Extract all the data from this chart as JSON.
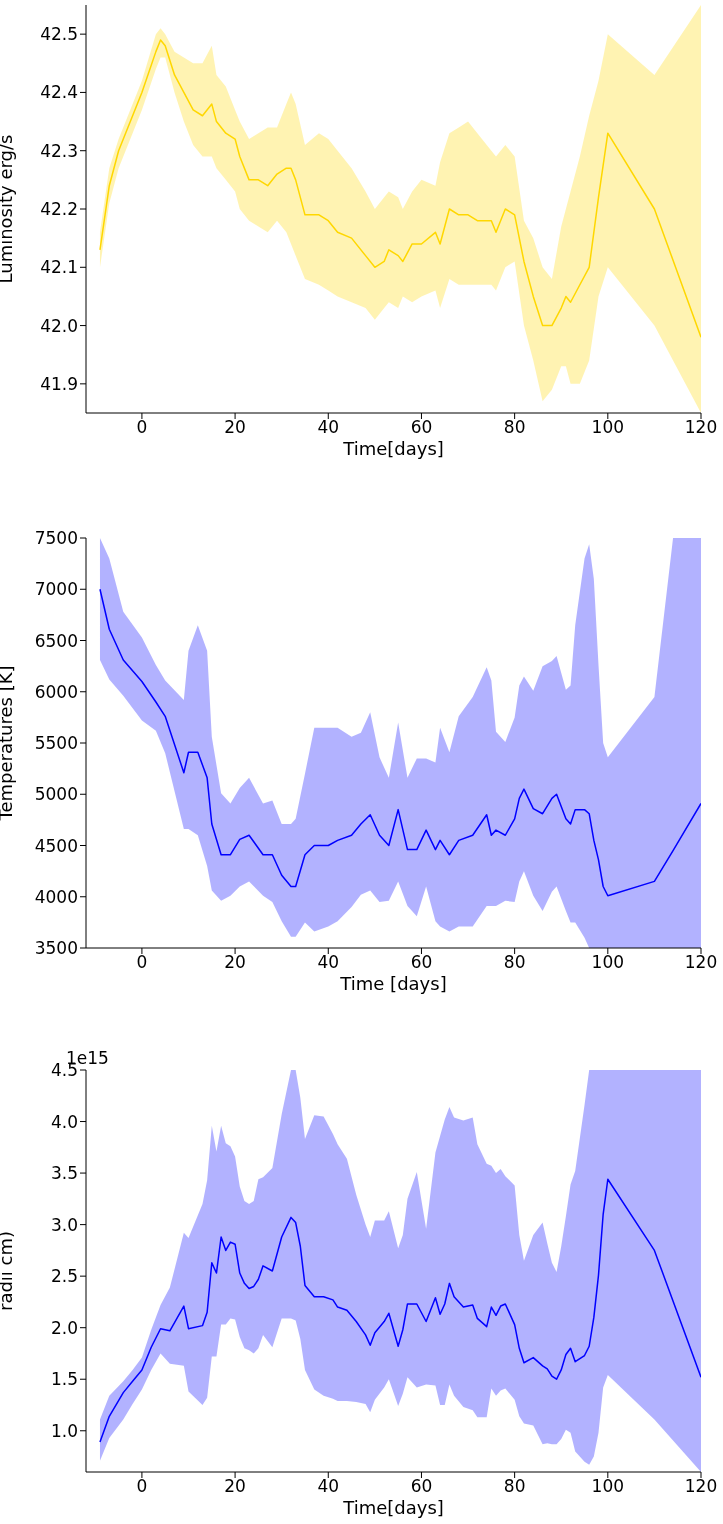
{
  "chart_data": [
    {
      "type": "line",
      "xlabel": "Time[days]",
      "ylabel": "Luminosity erg/s",
      "xlim": [
        -12,
        120
      ],
      "xticks": [
        0,
        20,
        40,
        60,
        80,
        100,
        120
      ],
      "ylim": [
        41.85,
        42.55
      ],
      "yticks": [
        {
          "value": 41.9,
          "label": "41.9"
        },
        {
          "value": 42,
          "label": "42.0"
        },
        {
          "value": 42.1,
          "label": "42.1"
        },
        {
          "value": 42.2,
          "label": "42.2"
        },
        {
          "value": 42.3,
          "label": "42.3"
        },
        {
          "value": 42.4,
          "label": "42.4"
        },
        {
          "value": 42.5,
          "label": "42.5"
        }
      ],
      "x": [
        -9,
        -7,
        -5,
        0,
        3,
        4,
        5,
        7,
        9,
        11,
        13,
        15,
        16,
        18,
        20,
        21,
        23,
        25,
        27,
        29,
        31,
        32,
        33,
        35,
        38,
        40,
        42,
        45,
        48,
        50,
        52,
        53,
        55,
        56,
        58,
        60,
        63,
        64,
        66,
        68,
        70,
        72,
        75,
        76,
        78,
        80,
        82,
        84,
        86,
        88,
        90,
        91,
        92,
        94,
        96,
        98,
        100,
        110,
        120
      ],
      "series": [
        {
          "color": "#ffd700",
          "values": [
            42.13,
            42.24,
            42.3,
            42.4,
            42.47,
            42.49,
            42.48,
            42.43,
            42.4,
            42.37,
            42.36,
            42.38,
            42.35,
            42.33,
            42.32,
            42.29,
            42.25,
            42.25,
            42.24,
            42.26,
            42.27,
            42.27,
            42.25,
            42.19,
            42.19,
            42.18,
            42.16,
            42.15,
            42.12,
            42.1,
            42.11,
            42.13,
            42.12,
            42.11,
            42.14,
            42.14,
            42.16,
            42.14,
            42.2,
            42.19,
            42.19,
            42.18,
            42.18,
            42.16,
            42.2,
            42.19,
            42.11,
            42.05,
            42.0,
            42.0,
            42.03,
            42.05,
            42.04,
            42.07,
            42.1,
            42.22,
            42.33,
            42.2,
            41.98
          ],
          "lower": [
            42.1,
            42.21,
            42.27,
            42.37,
            42.44,
            42.46,
            42.46,
            42.4,
            42.35,
            42.31,
            42.29,
            42.29,
            42.27,
            42.25,
            42.23,
            42.2,
            42.18,
            42.17,
            42.16,
            42.18,
            42.16,
            42.14,
            42.12,
            42.08,
            42.07,
            42.06,
            42.05,
            42.04,
            42.03,
            42.01,
            42.03,
            42.04,
            42.03,
            42.05,
            42.04,
            42.05,
            42.06,
            42.03,
            42.08,
            42.07,
            42.07,
            42.07,
            42.07,
            42.06,
            42.1,
            42.11,
            42.0,
            41.94,
            41.87,
            41.89,
            41.93,
            41.93,
            41.9,
            41.9,
            41.94,
            42.05,
            42.1,
            42.0,
            41.85
          ],
          "upper": [
            42.16,
            42.27,
            42.32,
            42.42,
            42.5,
            42.51,
            42.5,
            42.47,
            42.46,
            42.45,
            42.45,
            42.48,
            42.43,
            42.41,
            42.37,
            42.35,
            42.32,
            42.33,
            42.34,
            42.34,
            42.38,
            42.4,
            42.38,
            42.31,
            42.33,
            42.32,
            42.3,
            42.27,
            42.23,
            42.2,
            42.22,
            42.23,
            42.22,
            42.2,
            42.23,
            42.25,
            42.24,
            42.28,
            42.33,
            42.34,
            42.35,
            42.33,
            42.3,
            42.29,
            42.31,
            42.29,
            42.18,
            42.15,
            42.1,
            42.08,
            42.17,
            42.2,
            42.23,
            42.29,
            42.36,
            42.42,
            42.5,
            42.43,
            42.55
          ]
        }
      ]
    },
    {
      "type": "line",
      "xlabel": "Time [days]",
      "ylabel": "Temperatures [K]",
      "xlim": [
        -12,
        120
      ],
      "xticks": [
        0,
        20,
        40,
        60,
        80,
        100,
        120
      ],
      "ylim": [
        3500,
        7500
      ],
      "yticks": [
        3500,
        4000,
        4500,
        5000,
        5500,
        6000,
        6500,
        7000,
        7500
      ],
      "x": [
        -9,
        -7,
        -4,
        0,
        3,
        5,
        9,
        10,
        12,
        14,
        15,
        17,
        19,
        21,
        23,
        26,
        28,
        30,
        32,
        33,
        35,
        37,
        40,
        42,
        45,
        47,
        49,
        51,
        53,
        55,
        57,
        59,
        61,
        63,
        64,
        66,
        68,
        71,
        74,
        75,
        76,
        78,
        80,
        81,
        82,
        84,
        86,
        88,
        89,
        91,
        92,
        93,
        95,
        96,
        97,
        98,
        99,
        100,
        110,
        114,
        120
      ],
      "series": [
        {
          "color": "#0000ff",
          "values": [
            7000,
            6610,
            6310,
            6100,
            5900,
            5760,
            5210,
            5410,
            5410,
            5160,
            4710,
            4410,
            4410,
            4560,
            4600,
            4410,
            4410,
            4210,
            4100,
            4100,
            4410,
            4500,
            4500,
            4550,
            4600,
            4710,
            4800,
            4600,
            4500,
            4850,
            4460,
            4460,
            4650,
            4460,
            4550,
            4410,
            4550,
            4600,
            4800,
            4600,
            4650,
            4600,
            4760,
            4960,
            5050,
            4860,
            4810,
            4960,
            5000,
            4760,
            4710,
            4850,
            4850,
            4810,
            4550,
            4360,
            4100,
            4010,
            4150,
            4450,
            4910
          ],
          "lower": [
            6310,
            6120,
            5960,
            5720,
            5620,
            5400,
            4660,
            4660,
            4600,
            4300,
            4060,
            3960,
            4010,
            4100,
            4150,
            4010,
            3950,
            3760,
            3610,
            3610,
            3750,
            3660,
            3710,
            3760,
            3900,
            4020,
            4060,
            3950,
            3960,
            4150,
            3910,
            3810,
            4100,
            3760,
            3710,
            3660,
            3710,
            3710,
            3910,
            3910,
            3910,
            3960,
            3950,
            4150,
            4250,
            4010,
            3860,
            4050,
            4100,
            3860,
            3750,
            3750,
            3600,
            3500,
            3500,
            3500,
            3500,
            3500,
            3500,
            3500,
            3500
          ],
          "upper": [
            7500,
            7300,
            6780,
            6530,
            6260,
            6110,
            5920,
            6400,
            6650,
            6400,
            5560,
            5010,
            4910,
            5060,
            5160,
            4910,
            4940,
            4710,
            4710,
            4760,
            5200,
            5650,
            5650,
            5650,
            5560,
            5600,
            5800,
            5360,
            5160,
            5700,
            5160,
            5350,
            5350,
            5310,
            5650,
            5410,
            5760,
            5950,
            6240,
            6110,
            5610,
            5510,
            5750,
            6060,
            6150,
            6010,
            6250,
            6300,
            6350,
            6020,
            6060,
            6650,
            7300,
            7440,
            7100,
            6260,
            5500,
            5360,
            5950,
            7500,
            7500
          ]
        }
      ]
    },
    {
      "type": "line",
      "xlabel": "Time[days]",
      "ylabel": "radii cm)",
      "annotations": [
        "1e15"
      ],
      "xlim": [
        -12,
        120
      ],
      "xticks": [
        0,
        20,
        40,
        60,
        80,
        100,
        120
      ],
      "ylim": [
        0.6,
        4.5
      ],
      "yticks": [
        {
          "value": 1,
          "label": "1.0"
        },
        {
          "value": 1.5,
          "label": "1.5"
        },
        {
          "value": 2,
          "label": "2.0"
        },
        {
          "value": 2.5,
          "label": "2.5"
        },
        {
          "value": 3,
          "label": "3.0"
        },
        {
          "value": 3.5,
          "label": "3.5"
        },
        {
          "value": 4,
          "label": "4.0"
        },
        {
          "value": 4.5,
          "label": "4.5"
        }
      ],
      "x": [
        -9,
        -7,
        -4,
        -2,
        0,
        2,
        4,
        6,
        9,
        10,
        13,
        14,
        15,
        16,
        17,
        18,
        19,
        20,
        21,
        22,
        23,
        24,
        25,
        26,
        28,
        30,
        32,
        33,
        34,
        35,
        37,
        39,
        41,
        42,
        44,
        46,
        48,
        49,
        50,
        52,
        53,
        55,
        56,
        57,
        59,
        61,
        63,
        64,
        65,
        66,
        67,
        69,
        71,
        72,
        74,
        75,
        76,
        77,
        78,
        80,
        81,
        82,
        84,
        86,
        87,
        88,
        89,
        90,
        91,
        92,
        93,
        95,
        96,
        97,
        98,
        99,
        100,
        110,
        120
      ],
      "series": [
        {
          "color": "#0000ff",
          "values": [
            0.89,
            1.14,
            1.37,
            1.48,
            1.59,
            1.81,
            1.99,
            1.97,
            2.21,
            1.99,
            2.02,
            2.15,
            2.63,
            2.53,
            2.88,
            2.75,
            2.83,
            2.81,
            2.53,
            2.43,
            2.38,
            2.4,
            2.47,
            2.6,
            2.55,
            2.88,
            3.07,
            3.02,
            2.79,
            2.41,
            2.3,
            2.3,
            2.27,
            2.2,
            2.17,
            2.06,
            1.93,
            1.83,
            1.95,
            2.06,
            2.14,
            1.82,
            1.98,
            2.23,
            2.23,
            2.06,
            2.29,
            2.13,
            2.23,
            2.43,
            2.3,
            2.2,
            2.22,
            2.09,
            2.01,
            2.2,
            2.12,
            2.21,
            2.23,
            2.03,
            1.8,
            1.66,
            1.71,
            1.63,
            1.6,
            1.53,
            1.5,
            1.59,
            1.74,
            1.8,
            1.67,
            1.73,
            1.82,
            2.1,
            2.51,
            3.1,
            3.44,
            2.75,
            1.52
          ],
          "lower": [
            0.71,
            0.93,
            1.11,
            1.26,
            1.4,
            1.59,
            1.75,
            1.65,
            1.63,
            1.38,
            1.25,
            1.32,
            1.72,
            1.72,
            2.03,
            2.03,
            2.09,
            2.08,
            1.91,
            1.8,
            1.78,
            1.75,
            1.8,
            1.93,
            1.81,
            2.09,
            2.09,
            2.07,
            1.89,
            1.59,
            1.4,
            1.34,
            1.31,
            1.29,
            1.29,
            1.28,
            1.26,
            1.18,
            1.3,
            1.42,
            1.5,
            1.24,
            1.36,
            1.52,
            1.42,
            1.45,
            1.44,
            1.25,
            1.25,
            1.45,
            1.34,
            1.23,
            1.2,
            1.13,
            1.13,
            1.41,
            1.34,
            1.39,
            1.41,
            1.3,
            1.14,
            1.07,
            1.05,
            0.87,
            0.88,
            0.87,
            0.87,
            0.92,
            1.01,
            0.98,
            0.8,
            0.7,
            0.67,
            0.75,
            0.98,
            1.42,
            1.54,
            1.11,
            0.6
          ],
          "upper": [
            1.11,
            1.34,
            1.48,
            1.59,
            1.71,
            1.98,
            2.22,
            2.39,
            2.92,
            2.87,
            3.2,
            3.43,
            3.96,
            3.71,
            3.96,
            3.79,
            3.76,
            3.66,
            3.37,
            3.23,
            3.2,
            3.23,
            3.44,
            3.46,
            3.55,
            4.07,
            4.5,
            4.5,
            4.23,
            3.83,
            4.06,
            4.05,
            3.88,
            3.78,
            3.64,
            3.29,
            3.0,
            2.88,
            3.04,
            3.04,
            3.13,
            2.77,
            2.9,
            3.25,
            3.51,
            2.96,
            3.7,
            3.86,
            4.02,
            4.14,
            4.04,
            4.01,
            4.04,
            3.78,
            3.59,
            3.57,
            3.5,
            3.54,
            3.47,
            3.38,
            2.9,
            2.65,
            2.9,
            3.02,
            2.82,
            2.63,
            2.54,
            2.79,
            3.08,
            3.39,
            3.52,
            4.16,
            4.5,
            4.5,
            4.5,
            4.5,
            4.5,
            4.5,
            4.5
          ]
        }
      ]
    }
  ]
}
